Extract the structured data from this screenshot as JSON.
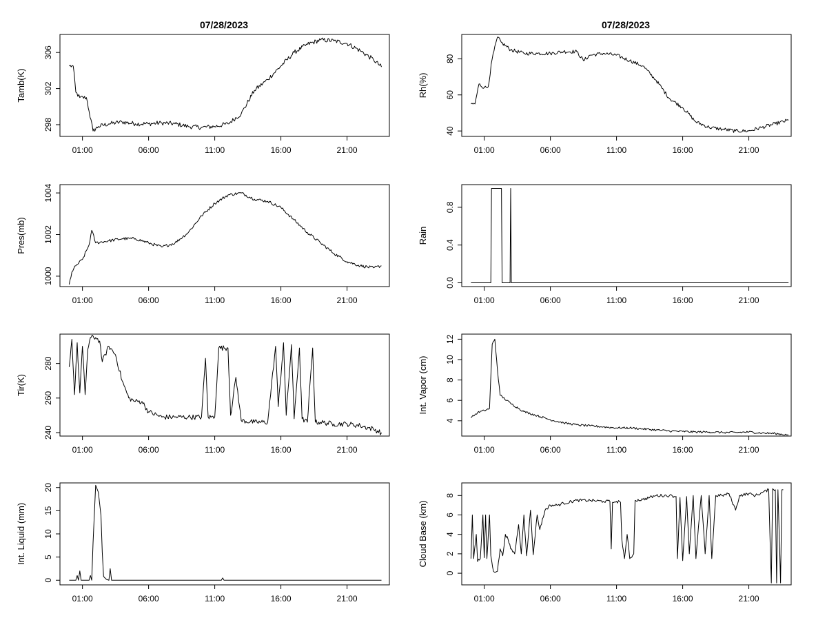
{
  "figure_title_left": "07/28/2023",
  "figure_title_right": "07/28/2023",
  "chart_data": [
    {
      "type": "line",
      "ylabel": "Tamb(K)",
      "xlabel": "",
      "xlim": [
        -0.7,
        24.2
      ],
      "ylim": [
        296.7,
        308
      ],
      "yticks": [
        298,
        302,
        306
      ],
      "xticks": [
        1,
        6,
        11,
        16,
        21
      ],
      "xticklabels": [
        "01:00",
        "06:00",
        "11:00",
        "16:00",
        "21:00"
      ],
      "noise": 0.25,
      "points": [
        [
          0,
          304.5
        ],
        [
          0.3,
          304.5
        ],
        [
          0.5,
          301.6
        ],
        [
          0.8,
          301
        ],
        [
          1.3,
          301
        ],
        [
          1.5,
          299.5
        ],
        [
          1.8,
          297.3
        ],
        [
          2.2,
          297.8
        ],
        [
          3,
          298.1
        ],
        [
          4,
          298.3
        ],
        [
          5,
          298.1
        ],
        [
          6,
          298.1
        ],
        [
          7,
          298.2
        ],
        [
          8,
          298.1
        ],
        [
          9,
          297.8
        ],
        [
          10,
          297.7
        ],
        [
          11,
          297.8
        ],
        [
          12,
          298.1
        ],
        [
          13,
          299.2
        ],
        [
          14,
          301.8
        ],
        [
          15,
          303
        ],
        [
          16,
          304.5
        ],
        [
          17,
          306
        ],
        [
          18,
          306.9
        ],
        [
          19,
          307.4
        ],
        [
          20,
          307.3
        ],
        [
          21,
          307
        ],
        [
          22,
          306.2
        ],
        [
          23,
          305.2
        ],
        [
          23.6,
          304.4
        ]
      ]
    },
    {
      "type": "line",
      "ylabel": "Rh(%)",
      "xlabel": "",
      "xlim": [
        -0.7,
        24.2
      ],
      "ylim": [
        37,
        93.5
      ],
      "yticks": [
        40,
        60,
        80
      ],
      "xticks": [
        1,
        6,
        11,
        16,
        21
      ],
      "xticklabels": [
        "01:00",
        "06:00",
        "11:00",
        "16:00",
        "21:00"
      ],
      "noise": 1.0,
      "points": [
        [
          0,
          55
        ],
        [
          0.3,
          55
        ],
        [
          0.6,
          66
        ],
        [
          1,
          64
        ],
        [
          1.3,
          64.5
        ],
        [
          1.6,
          80
        ],
        [
          2,
          92
        ],
        [
          2.3,
          89
        ],
        [
          3,
          85
        ],
        [
          4,
          83
        ],
        [
          5,
          83
        ],
        [
          6,
          83
        ],
        [
          7,
          84
        ],
        [
          8,
          84
        ],
        [
          8.5,
          79
        ],
        [
          9,
          82
        ],
        [
          10,
          83
        ],
        [
          11,
          82
        ],
        [
          12,
          79
        ],
        [
          13,
          76
        ],
        [
          14,
          68
        ],
        [
          15,
          58
        ],
        [
          16,
          53
        ],
        [
          17,
          45
        ],
        [
          18,
          42
        ],
        [
          19,
          41
        ],
        [
          20,
          40
        ],
        [
          21,
          40
        ],
        [
          22,
          42
        ],
        [
          23,
          44
        ],
        [
          24,
          46
        ]
      ]
    },
    {
      "type": "line",
      "ylabel": "Pres(mb)",
      "xlabel": "",
      "xlim": [
        -0.7,
        24.2
      ],
      "ylim": [
        999.5,
        1004.4
      ],
      "yticks": [
        1000,
        1002,
        1004
      ],
      "xticks": [
        1,
        6,
        11,
        16,
        21
      ],
      "xticklabels": [
        "01:00",
        "06:00",
        "11:00",
        "16:00",
        "21:00"
      ],
      "noise": 0.07,
      "points": [
        [
          0,
          999.6
        ],
        [
          0.2,
          1000.2
        ],
        [
          0.5,
          1000.5
        ],
        [
          1,
          1000.8
        ],
        [
          1.5,
          1001.5
        ],
        [
          1.7,
          1002.2
        ],
        [
          2,
          1001.6
        ],
        [
          3,
          1001.7
        ],
        [
          4,
          1001.8
        ],
        [
          5,
          1001.8
        ],
        [
          6,
          1001.6
        ],
        [
          7,
          1001.4
        ],
        [
          8,
          1001.6
        ],
        [
          9,
          1002.1
        ],
        [
          10,
          1002.9
        ],
        [
          11,
          1003.5
        ],
        [
          12,
          1003.9
        ],
        [
          13,
          1004
        ],
        [
          14,
          1003.7
        ],
        [
          15,
          1003.6
        ],
        [
          16,
          1003.3
        ],
        [
          17,
          1002.7
        ],
        [
          18,
          1002.1
        ],
        [
          19,
          1001.6
        ],
        [
          20,
          1001.1
        ],
        [
          21,
          1000.7
        ],
        [
          22,
          1000.5
        ],
        [
          23,
          1000.4
        ],
        [
          23.6,
          1000.5
        ]
      ]
    },
    {
      "type": "line",
      "ylabel": "Rain",
      "xlabel": "",
      "xlim": [
        -0.7,
        24.2
      ],
      "ylim": [
        -0.04,
        1.04
      ],
      "yticks": [
        0.0,
        0.4,
        0.8
      ],
      "yticklabels": [
        "0.0",
        "0.4",
        "0.8"
      ],
      "xticks": [
        1,
        6,
        11,
        16,
        21
      ],
      "xticklabels": [
        "01:00",
        "06:00",
        "11:00",
        "16:00",
        "21:00"
      ],
      "noise": 0,
      "points": [
        [
          0,
          0
        ],
        [
          1.5,
          0
        ],
        [
          1.55,
          1
        ],
        [
          2.3,
          1
        ],
        [
          2.35,
          0
        ],
        [
          2.95,
          0
        ],
        [
          3,
          1
        ],
        [
          3.05,
          0
        ],
        [
          24,
          0
        ]
      ]
    },
    {
      "type": "line",
      "ylabel": "Tir(K)",
      "xlabel": "",
      "xlim": [
        -0.7,
        24.2
      ],
      "ylim": [
        238,
        297
      ],
      "yticks": [
        240,
        260,
        280
      ],
      "xticks": [
        1,
        6,
        11,
        16,
        21
      ],
      "xticklabels": [
        "01:00",
        "06:00",
        "11:00",
        "16:00",
        "21:00"
      ],
      "noise": 1.5,
      "points": [
        [
          0,
          278
        ],
        [
          0.2,
          294
        ],
        [
          0.4,
          262
        ],
        [
          0.6,
          292
        ],
        [
          0.8,
          263
        ],
        [
          1,
          290
        ],
        [
          1.2,
          262
        ],
        [
          1.4,
          288
        ],
        [
          1.6,
          295
        ],
        [
          2,
          295
        ],
        [
          2.3,
          293
        ],
        [
          2.5,
          281
        ],
        [
          3,
          290
        ],
        [
          3.5,
          285
        ],
        [
          4,
          270
        ],
        [
          4.5,
          260
        ],
        [
          5,
          258
        ],
        [
          5.5,
          258
        ],
        [
          6,
          252
        ],
        [
          7,
          249
        ],
        [
          8,
          249
        ],
        [
          9,
          249
        ],
        [
          10,
          249
        ],
        [
          10.3,
          283
        ],
        [
          10.5,
          249
        ],
        [
          11,
          249
        ],
        [
          11.3,
          289
        ],
        [
          12,
          289
        ],
        [
          12.2,
          250
        ],
        [
          12.6,
          272
        ],
        [
          13,
          247
        ],
        [
          14,
          246
        ],
        [
          15,
          246
        ],
        [
          15.6,
          290
        ],
        [
          15.8,
          255
        ],
        [
          16.2,
          292
        ],
        [
          16.4,
          250
        ],
        [
          16.8,
          291
        ],
        [
          17,
          248
        ],
        [
          17.4,
          289
        ],
        [
          17.6,
          248
        ],
        [
          18,
          246
        ],
        [
          18.4,
          289
        ],
        [
          18.6,
          246
        ],
        [
          19,
          246
        ],
        [
          20,
          245
        ],
        [
          21,
          245
        ],
        [
          22,
          244
        ],
        [
          23,
          242
        ],
        [
          23.6,
          240
        ]
      ]
    },
    {
      "type": "line",
      "ylabel": "Int. Vapor (cm)",
      "xlabel": "",
      "xlim": [
        -0.7,
        24.2
      ],
      "ylim": [
        2.5,
        12.5
      ],
      "yticks": [
        4,
        6,
        8,
        10,
        12
      ],
      "xticks": [
        1,
        6,
        11,
        16,
        21
      ],
      "xticklabels": [
        "01:00",
        "06:00",
        "11:00",
        "16:00",
        "21:00"
      ],
      "noise": 0.1,
      "points": [
        [
          0,
          4.3
        ],
        [
          0.5,
          4.8
        ],
        [
          1,
          5
        ],
        [
          1.4,
          5.2
        ],
        [
          1.6,
          11.5
        ],
        [
          1.8,
          12
        ],
        [
          2,
          9
        ],
        [
          2.2,
          6.5
        ],
        [
          3,
          5.7
        ],
        [
          4,
          4.9
        ],
        [
          5,
          4.5
        ],
        [
          6,
          4.1
        ],
        [
          7,
          3.8
        ],
        [
          8,
          3.6
        ],
        [
          9,
          3.5
        ],
        [
          10,
          3.4
        ],
        [
          11,
          3.3
        ],
        [
          12,
          3.3
        ],
        [
          13,
          3.2
        ],
        [
          14,
          3.1
        ],
        [
          15,
          3
        ],
        [
          16,
          2.95
        ],
        [
          17,
          2.9
        ],
        [
          18,
          2.9
        ],
        [
          19,
          2.85
        ],
        [
          20,
          2.85
        ],
        [
          21,
          2.9
        ],
        [
          22,
          2.8
        ],
        [
          23,
          2.75
        ],
        [
          24,
          2.6
        ]
      ]
    },
    {
      "type": "line",
      "ylabel": "Int. Liquid (mm)",
      "xlabel": "",
      "xlim": [
        -0.7,
        24.2
      ],
      "ylim": [
        -1,
        21
      ],
      "yticks": [
        0,
        5,
        10,
        15,
        20
      ],
      "xticks": [
        1,
        6,
        11,
        16,
        21
      ],
      "xticklabels": [
        "01:00",
        "06:00",
        "11:00",
        "16:00",
        "21:00"
      ],
      "noise": 0,
      "points": [
        [
          0,
          0
        ],
        [
          0.5,
          0
        ],
        [
          0.6,
          1
        ],
        [
          0.7,
          0
        ],
        [
          0.8,
          2
        ],
        [
          0.9,
          0
        ],
        [
          1.5,
          0
        ],
        [
          1.6,
          1
        ],
        [
          1.7,
          0
        ],
        [
          1.8,
          8
        ],
        [
          2,
          20.5
        ],
        [
          2.2,
          19
        ],
        [
          2.4,
          14
        ],
        [
          2.5,
          6
        ],
        [
          2.6,
          0.8
        ],
        [
          2.8,
          0.2
        ],
        [
          3,
          0
        ],
        [
          3.1,
          2.5
        ],
        [
          3.2,
          0
        ],
        [
          11.5,
          0
        ],
        [
          11.6,
          0.5
        ],
        [
          11.7,
          0
        ],
        [
          23.6,
          0
        ]
      ]
    },
    {
      "type": "line",
      "ylabel": "Cloud Base (km)",
      "xlabel": "",
      "xlim": [
        -0.7,
        24.2
      ],
      "ylim": [
        -1.2,
        9.3
      ],
      "yticks": [
        0,
        2,
        4,
        6,
        8
      ],
      "xticks": [
        1,
        6,
        11,
        16,
        21
      ],
      "xticklabels": [
        "01:00",
        "06:00",
        "11:00",
        "16:00",
        "21:00"
      ],
      "noise": 0.15,
      "points": [
        [
          0,
          1.5
        ],
        [
          0.1,
          6
        ],
        [
          0.2,
          1.5
        ],
        [
          0.4,
          4
        ],
        [
          0.5,
          1.2
        ],
        [
          0.7,
          1.5
        ],
        [
          0.9,
          6
        ],
        [
          1,
          1.6
        ],
        [
          1.1,
          6
        ],
        [
          1.2,
          1.5
        ],
        [
          1.4,
          6
        ],
        [
          1.5,
          1.8
        ],
        [
          1.7,
          0.2
        ],
        [
          2,
          0.2
        ],
        [
          2.2,
          2.5
        ],
        [
          2.4,
          1.8
        ],
        [
          2.6,
          4
        ],
        [
          2.8,
          3.5
        ],
        [
          3,
          2.5
        ],
        [
          3.3,
          2
        ],
        [
          3.6,
          5
        ],
        [
          3.8,
          2
        ],
        [
          4,
          6
        ],
        [
          4.2,
          1.8
        ],
        [
          4.5,
          6.5
        ],
        [
          4.7,
          1.9
        ],
        [
          5,
          6
        ],
        [
          5.2,
          4.5
        ],
        [
          5.6,
          6.5
        ],
        [
          6,
          7
        ],
        [
          6.5,
          7
        ],
        [
          7,
          7.2
        ],
        [
          8,
          7.5
        ],
        [
          9,
          7.5
        ],
        [
          10,
          7.4
        ],
        [
          10.5,
          7.4
        ],
        [
          10.6,
          2.5
        ],
        [
          10.7,
          7.3
        ],
        [
          11,
          7.4
        ],
        [
          11.3,
          7.3
        ],
        [
          11.4,
          3.5
        ],
        [
          11.6,
          1.5
        ],
        [
          11.8,
          4
        ],
        [
          12,
          1.5
        ],
        [
          12.3,
          2
        ],
        [
          12.4,
          7.5
        ],
        [
          13,
          7.6
        ],
        [
          14,
          8
        ],
        [
          15,
          8
        ],
        [
          15.5,
          7.9
        ],
        [
          15.6,
          1.5
        ],
        [
          15.8,
          7.8
        ],
        [
          16,
          1.3
        ],
        [
          16.3,
          7.9
        ],
        [
          16.5,
          2
        ],
        [
          16.8,
          8
        ],
        [
          17,
          1.5
        ],
        [
          17.4,
          8
        ],
        [
          17.7,
          2
        ],
        [
          18,
          8
        ],
        [
          18.2,
          1.5
        ],
        [
          18.5,
          8
        ],
        [
          19,
          8
        ],
        [
          19.5,
          8.2
        ],
        [
          20,
          6.5
        ],
        [
          20.3,
          8
        ],
        [
          21,
          8.2
        ],
        [
          21.5,
          8
        ],
        [
          22,
          8.3
        ],
        [
          22.5,
          8.6
        ],
        [
          22.7,
          -1
        ],
        [
          22.8,
          8.7
        ],
        [
          23,
          8.6
        ],
        [
          23.1,
          -1
        ],
        [
          23.2,
          8.6
        ],
        [
          23.4,
          -1
        ],
        [
          23.5,
          8.6
        ],
        [
          23.6,
          8.6
        ]
      ]
    }
  ]
}
